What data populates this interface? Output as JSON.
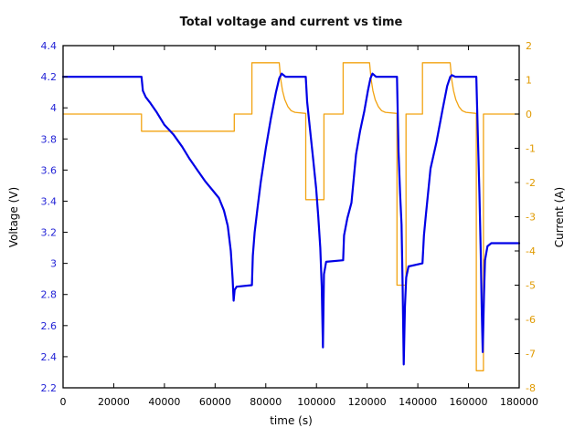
{
  "chart_data": {
    "type": "line",
    "title": "Total voltage and current vs time",
    "xlabel": "time (s)",
    "ylabel_left": "Voltage (V)",
    "ylabel_right": "Current (A)",
    "grid": false,
    "legend": "none",
    "x_range": [
      0,
      180000
    ],
    "x_ticks": [
      0,
      20000,
      40000,
      60000,
      80000,
      100000,
      120000,
      140000,
      160000,
      180000
    ],
    "y_left_range": [
      2.2,
      4.4
    ],
    "y_left_ticks": [
      2.2,
      2.4,
      2.6,
      2.8,
      3,
      3.2,
      3.4,
      3.6,
      3.8,
      4,
      4.2,
      4.4
    ],
    "y_right_range": [
      -8,
      2
    ],
    "y_right_ticks": [
      -8,
      -7,
      -6,
      -5,
      -4,
      -3,
      -2,
      -1,
      0,
      1,
      2
    ],
    "colors": {
      "voltage": "#0000e6",
      "current": "#f2a311",
      "voltage_tick_text": "#2323d6",
      "current_tick_text": "#e09a00",
      "axis": "#000000"
    },
    "series": [
      {
        "name": "voltage",
        "axis": "left",
        "color_key": "voltage",
        "stroke_width": 2.2,
        "points": [
          [
            0,
            4.2
          ],
          [
            30960,
            4.2
          ],
          [
            31500,
            4.11
          ],
          [
            32600,
            4.07
          ],
          [
            34500,
            4.03
          ],
          [
            37000,
            3.97
          ],
          [
            40000,
            3.89
          ],
          [
            43500,
            3.83
          ],
          [
            47000,
            3.75
          ],
          [
            50000,
            3.67
          ],
          [
            53000,
            3.6
          ],
          [
            56000,
            3.53
          ],
          [
            59000,
            3.47
          ],
          [
            61500,
            3.42
          ],
          [
            63500,
            3.34
          ],
          [
            65000,
            3.24
          ],
          [
            66200,
            3.08
          ],
          [
            66900,
            2.9
          ],
          [
            67300,
            2.76
          ],
          [
            67700,
            2.83
          ],
          [
            68500,
            2.85
          ],
          [
            74520,
            2.86
          ],
          [
            74900,
            3.05
          ],
          [
            75600,
            3.2
          ],
          [
            76700,
            3.35
          ],
          [
            78000,
            3.52
          ],
          [
            80000,
            3.74
          ],
          [
            82000,
            3.93
          ],
          [
            84000,
            4.1
          ],
          [
            85300,
            4.19
          ],
          [
            86300,
            4.22
          ],
          [
            87800,
            4.2
          ],
          [
            95760,
            4.2
          ],
          [
            96300,
            4.04
          ],
          [
            97400,
            3.87
          ],
          [
            98700,
            3.67
          ],
          [
            99900,
            3.48
          ],
          [
            100700,
            3.3
          ],
          [
            101500,
            3.1
          ],
          [
            102100,
            2.85
          ],
          [
            102550,
            2.46
          ],
          [
            102960,
            2.93
          ],
          [
            103800,
            3.01
          ],
          [
            110520,
            3.02
          ],
          [
            110900,
            3.18
          ],
          [
            112200,
            3.29
          ],
          [
            113800,
            3.39
          ],
          [
            115600,
            3.7
          ],
          [
            117200,
            3.85
          ],
          [
            118900,
            3.98
          ],
          [
            120300,
            4.11
          ],
          [
            121300,
            4.19
          ],
          [
            122100,
            4.22
          ],
          [
            123500,
            4.2
          ],
          [
            131760,
            4.2
          ],
          [
            132400,
            3.72
          ],
          [
            133000,
            3.45
          ],
          [
            133560,
            3.25
          ],
          [
            134000,
            2.85
          ],
          [
            134430,
            2.35
          ],
          [
            134900,
            2.72
          ],
          [
            135400,
            2.91
          ],
          [
            136300,
            2.98
          ],
          [
            141840,
            3.0
          ],
          [
            142400,
            3.18
          ],
          [
            143160,
            3.31
          ],
          [
            145000,
            3.61
          ],
          [
            147360,
            3.78
          ],
          [
            149760,
            3.99
          ],
          [
            151560,
            4.14
          ],
          [
            152800,
            4.2
          ],
          [
            153400,
            4.21
          ],
          [
            154800,
            4.2
          ],
          [
            163100,
            4.2
          ],
          [
            163700,
            3.82
          ],
          [
            164300,
            3.45
          ],
          [
            164800,
            3.08
          ],
          [
            165200,
            2.72
          ],
          [
            165600,
            2.43
          ],
          [
            166100,
            2.8
          ],
          [
            166500,
            3.02
          ],
          [
            167500,
            3.11
          ],
          [
            169000,
            3.13
          ],
          [
            180000,
            3.13
          ]
        ]
      },
      {
        "name": "current",
        "axis": "right",
        "color_key": "current",
        "stroke_width": 1.3,
        "points": [
          [
            0,
            0
          ],
          [
            30960,
            0
          ],
          [
            30960,
            -0.5
          ],
          [
            67570,
            -0.5
          ],
          [
            67570,
            0
          ],
          [
            74520,
            0
          ],
          [
            74520,
            1.5
          ],
          [
            85320,
            1.5
          ],
          [
            85900,
            1.02
          ],
          [
            86600,
            0.68
          ],
          [
            87500,
            0.42
          ],
          [
            88700,
            0.22
          ],
          [
            90000,
            0.1
          ],
          [
            91500,
            0.05
          ],
          [
            95760,
            0.02
          ],
          [
            95760,
            -2.5
          ],
          [
            102960,
            -2.5
          ],
          [
            102960,
            0
          ],
          [
            110520,
            0
          ],
          [
            110520,
            1.5
          ],
          [
            120960,
            1.5
          ],
          [
            121550,
            1.02
          ],
          [
            122300,
            0.68
          ],
          [
            123200,
            0.42
          ],
          [
            124400,
            0.22
          ],
          [
            125700,
            0.1
          ],
          [
            127200,
            0.05
          ],
          [
            131760,
            0.02
          ],
          [
            131760,
            -5
          ],
          [
            135360,
            -5
          ],
          [
            135360,
            0
          ],
          [
            141840,
            0
          ],
          [
            141840,
            1.5
          ],
          [
            152760,
            1.5
          ],
          [
            153350,
            1.02
          ],
          [
            154100,
            0.68
          ],
          [
            155000,
            0.42
          ],
          [
            156200,
            0.22
          ],
          [
            157500,
            0.1
          ],
          [
            159000,
            0.05
          ],
          [
            163100,
            0.02
          ],
          [
            163100,
            -7.5
          ],
          [
            165900,
            -7.5
          ],
          [
            165900,
            0
          ],
          [
            180000,
            0
          ]
        ]
      }
    ]
  }
}
